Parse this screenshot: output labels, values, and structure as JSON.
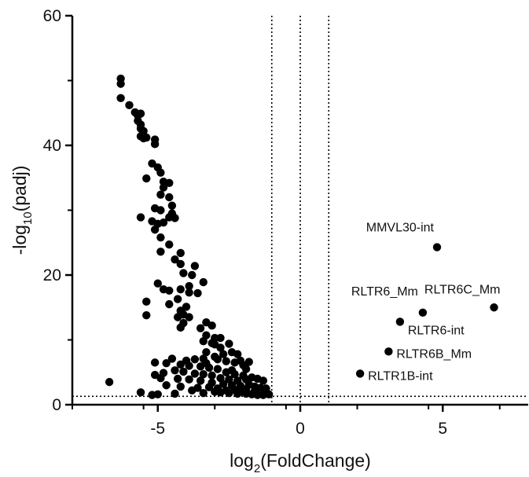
{
  "chart_data": {
    "type": "scatter",
    "xlabel_base": "log",
    "xlabel_sub": "2",
    "xlabel_rest": "(FoldChange)",
    "ylabel_base": "-log",
    "ylabel_sub": "10",
    "ylabel_rest": "(padj)",
    "xlim": [
      -8,
      8
    ],
    "ylim": [
      0,
      60
    ],
    "xticks": [
      -5,
      0,
      5
    ],
    "yticks": [
      0,
      20,
      40,
      60
    ],
    "grid": false,
    "reference_lines": {
      "vertical_x": [
        -1,
        0,
        1
      ],
      "horizontal_y": [
        1.3
      ],
      "style": "dotted"
    },
    "marker_color": "#000000",
    "labeled_points": [
      {
        "label": "MMVL30-int",
        "x": 4.8,
        "y": 24.3
      },
      {
        "label": "RLTR6C_Mm",
        "x": 6.8,
        "y": 15.0
      },
      {
        "label": "RLTR6_Mm",
        "x": 4.3,
        "y": 14.2
      },
      {
        "label": "RLTR6-int",
        "x": 3.5,
        "y": 12.8
      },
      {
        "label": "RLTR6B_Mm",
        "x": 3.1,
        "y": 8.2
      },
      {
        "label": "RLTR1B-int",
        "x": 2.1,
        "y": 4.8
      }
    ],
    "points": [
      [
        -6.3,
        50.3
      ],
      [
        -6.3,
        49.5
      ],
      [
        -6.3,
        47.3
      ],
      [
        -6.0,
        46.2
      ],
      [
        -5.8,
        45.1
      ],
      [
        -5.7,
        44.6
      ],
      [
        -5.6,
        44.9
      ],
      [
        -5.7,
        43.8
      ],
      [
        -5.6,
        43.2
      ],
      [
        -5.6,
        42.6
      ],
      [
        -5.5,
        42.2
      ],
      [
        -5.6,
        41.4
      ],
      [
        -5.5,
        41.1
      ],
      [
        -5.4,
        41.2
      ],
      [
        -5.1,
        40.9
      ],
      [
        -5.1,
        40.2
      ],
      [
        -5.2,
        37.2
      ],
      [
        -5.0,
        36.6
      ],
      [
        -4.9,
        35.8
      ],
      [
        -4.8,
        34.4
      ],
      [
        -4.8,
        33.5
      ],
      [
        -5.4,
        34.9
      ],
      [
        -4.6,
        34.2
      ],
      [
        -4.9,
        32.4
      ],
      [
        -4.6,
        32.0
      ],
      [
        -4.5,
        30.7
      ],
      [
        -4.5,
        29.5
      ],
      [
        -5.1,
        30.3
      ],
      [
        -4.9,
        30.0
      ],
      [
        -5.6,
        28.9
      ],
      [
        -5.2,
        28.3
      ],
      [
        -5.0,
        27.9
      ],
      [
        -4.8,
        28.1
      ],
      [
        -4.6,
        28.9
      ],
      [
        -4.4,
        28.8
      ],
      [
        -5.1,
        27.0
      ],
      [
        -4.9,
        25.8
      ],
      [
        -4.6,
        24.7
      ],
      [
        -4.9,
        23.6
      ],
      [
        -4.2,
        23.4
      ],
      [
        -4.4,
        22.4
      ],
      [
        -4.2,
        21.7
      ],
      [
        -4.1,
        20.3
      ],
      [
        -3.7,
        21.4
      ],
      [
        -3.8,
        20.0
      ],
      [
        -3.4,
        18.9
      ],
      [
        -5.0,
        18.7
      ],
      [
        -4.2,
        17.8
      ],
      [
        -3.9,
        18.3
      ],
      [
        -3.6,
        17.2
      ],
      [
        -4.8,
        17.8
      ],
      [
        -4.6,
        17.6
      ],
      [
        -3.9,
        17.3
      ],
      [
        -4.3,
        16.3
      ],
      [
        -4.6,
        15.5
      ],
      [
        -5.4,
        15.9
      ],
      [
        -4.0,
        15.1
      ],
      [
        -4.2,
        14.5
      ],
      [
        -4.1,
        13.9
      ],
      [
        -5.4,
        13.8
      ],
      [
        -4.3,
        13.5
      ],
      [
        -3.9,
        13.5
      ],
      [
        -4.1,
        12.6
      ],
      [
        -4.2,
        11.9
      ],
      [
        -3.3,
        12.7
      ],
      [
        -3.5,
        11.8
      ],
      [
        -3.1,
        12.2
      ],
      [
        -3.3,
        10.7
      ],
      [
        -3.0,
        10.3
      ],
      [
        -2.8,
        10.3
      ],
      [
        -3.4,
        9.8
      ],
      [
        -3.1,
        9.5
      ],
      [
        -3.0,
        9.3
      ],
      [
        -2.5,
        9.4
      ],
      [
        -2.8,
        8.8
      ],
      [
        -3.3,
        8.1
      ],
      [
        -2.7,
        7.8
      ],
      [
        -2.4,
        8.1
      ],
      [
        -2.2,
        7.8
      ],
      [
        -3.0,
        7.4
      ],
      [
        -3.4,
        7.1
      ],
      [
        -2.9,
        7.0
      ],
      [
        -2.6,
        6.7
      ],
      [
        -2.3,
        6.5
      ],
      [
        -2.1,
        6.8
      ],
      [
        -1.8,
        6.6
      ],
      [
        -2.0,
        6.1
      ],
      [
        -1.9,
        5.5
      ],
      [
        -2.4,
        5.3
      ],
      [
        -2.9,
        5.5
      ],
      [
        -3.2,
        5.7
      ],
      [
        -3.5,
        5.9
      ],
      [
        -3.9,
        6.0
      ],
      [
        -4.2,
        6.2
      ],
      [
        -4.7,
        6.4
      ],
      [
        -5.1,
        6.5
      ],
      [
        -4.5,
        7.1
      ],
      [
        -4.0,
        6.8
      ],
      [
        -3.7,
        7.0
      ],
      [
        -3.3,
        6.4
      ],
      [
        -2.6,
        5.0
      ],
      [
        -2.3,
        4.7
      ],
      [
        -2.0,
        4.5
      ],
      [
        -1.7,
        4.2
      ],
      [
        -1.5,
        4.0
      ],
      [
        -1.3,
        3.7
      ],
      [
        -1.9,
        3.9
      ],
      [
        -2.2,
        3.7
      ],
      [
        -2.5,
        3.9
      ],
      [
        -2.8,
        4.1
      ],
      [
        -3.1,
        4.5
      ],
      [
        -3.4,
        4.7
      ],
      [
        -3.7,
        4.8
      ],
      [
        -4.1,
        5.1
      ],
      [
        -4.4,
        5.3
      ],
      [
        -4.8,
        4.9
      ],
      [
        -5.1,
        4.6
      ],
      [
        -4.9,
        4.1
      ],
      [
        -4.3,
        4.0
      ],
      [
        -3.9,
        3.9
      ],
      [
        -3.5,
        3.7
      ],
      [
        -3.1,
        3.4
      ],
      [
        -2.7,
        3.2
      ],
      [
        -2.4,
        3.0
      ],
      [
        -2.1,
        2.9
      ],
      [
        -1.8,
        3.1
      ],
      [
        -1.6,
        2.8
      ],
      [
        -1.4,
        2.6
      ],
      [
        -1.2,
        2.5
      ],
      [
        -2.0,
        2.4
      ],
      [
        -2.3,
        2.3
      ],
      [
        -2.6,
        2.2
      ],
      [
        -2.9,
        2.5
      ],
      [
        -3.2,
        2.7
      ],
      [
        -3.6,
        2.6
      ],
      [
        -4.2,
        2.8
      ],
      [
        -4.7,
        3.0
      ],
      [
        -3.0,
        2.0
      ],
      [
        -2.8,
        1.9
      ],
      [
        -2.5,
        1.8
      ],
      [
        -2.2,
        1.7
      ],
      [
        -1.9,
        1.7
      ],
      [
        -1.7,
        1.6
      ],
      [
        -1.5,
        1.5
      ],
      [
        -1.3,
        1.5
      ],
      [
        -1.1,
        1.6
      ],
      [
        -1.6,
        2.1
      ],
      [
        -1.9,
        2.3
      ],
      [
        -2.1,
        2.0
      ],
      [
        -3.4,
        1.8
      ],
      [
        -3.8,
        2.2
      ],
      [
        -4.4,
        1.7
      ],
      [
        -5.0,
        1.6
      ],
      [
        -5.2,
        1.5
      ],
      [
        -5.6,
        1.9
      ],
      [
        -6.7,
        3.5
      ]
    ]
  }
}
